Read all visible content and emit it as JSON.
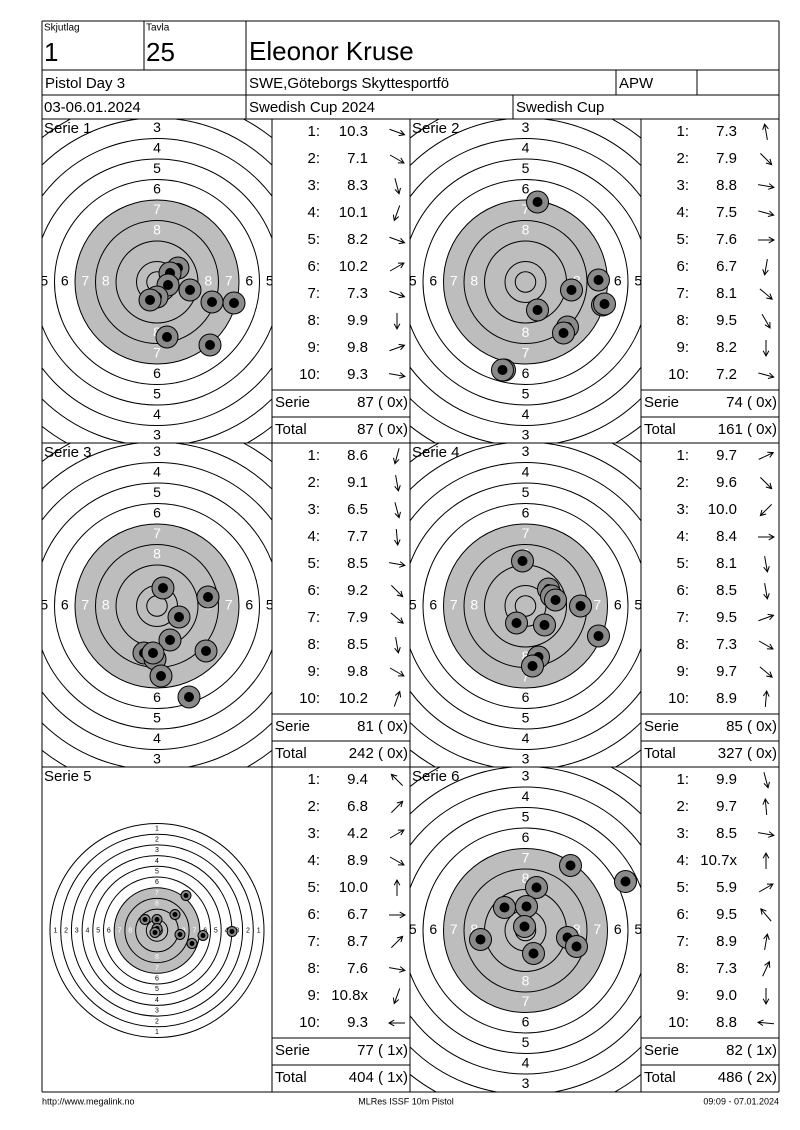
{
  "header": {
    "squad_label": "Skjutlag",
    "squad": "1",
    "target_label": "Tavla",
    "target": "25",
    "name": "Eleonor Kruse",
    "event": "Pistol Day 3",
    "club": "SWE,Göteborgs Skyttesportfö",
    "class": "APW",
    "dates": "03-06.01.2024",
    "competition": "Swedish Cup 2024",
    "series_name": "Swedish Cup"
  },
  "ring_numbers": [
    "1",
    "2",
    "3",
    "4",
    "5",
    "6",
    "7",
    "8"
  ],
  "series": [
    {
      "title": "Serie 1",
      "shots": [
        {
          "n": "1:",
          "value": "10.3"
        },
        {
          "n": "2:",
          "value": "7.1"
        },
        {
          "n": "3:",
          "value": "8.3"
        },
        {
          "n": "4:",
          "value": "10.1"
        },
        {
          "n": "5:",
          "value": "8.2"
        },
        {
          "n": "6:",
          "value": "10.2"
        },
        {
          "n": "7:",
          "value": "7.3"
        },
        {
          "n": "8:",
          "value": "9.9"
        },
        {
          "n": "9:",
          "value": "9.8"
        },
        {
          "n": "10:",
          "value": "9.3"
        }
      ],
      "serie_label": "Serie",
      "serie_score": "87 ( 0x)",
      "total_label": "Total",
      "total_score": "87 ( 0x)"
    },
    {
      "title": "Serie 2",
      "shots": [
        {
          "n": "1:",
          "value": "7.3"
        },
        {
          "n": "2:",
          "value": "7.9"
        },
        {
          "n": "3:",
          "value": "8.8"
        },
        {
          "n": "4:",
          "value": "7.5"
        },
        {
          "n": "5:",
          "value": "7.6"
        },
        {
          "n": "6:",
          "value": "6.7"
        },
        {
          "n": "7:",
          "value": "8.1"
        },
        {
          "n": "8:",
          "value": "9.5"
        },
        {
          "n": "9:",
          "value": "8.2"
        },
        {
          "n": "10:",
          "value": "7.2"
        }
      ],
      "serie_label": "Serie",
      "serie_score": "74 ( 0x)",
      "total_label": "Total",
      "total_score": "161 ( 0x)"
    },
    {
      "title": "Serie 3",
      "shots": [
        {
          "n": "1:",
          "value": "8.6"
        },
        {
          "n": "2:",
          "value": "9.1"
        },
        {
          "n": "3:",
          "value": "6.5"
        },
        {
          "n": "4:",
          "value": "7.7"
        },
        {
          "n": "5:",
          "value": "8.5"
        },
        {
          "n": "6:",
          "value": "9.2"
        },
        {
          "n": "7:",
          "value": "7.9"
        },
        {
          "n": "8:",
          "value": "8.5"
        },
        {
          "n": "9:",
          "value": "9.8"
        },
        {
          "n": "10:",
          "value": "10.2"
        }
      ],
      "serie_label": "Serie",
      "serie_score": "81 ( 0x)",
      "total_label": "Total",
      "total_score": "242 ( 0x)"
    },
    {
      "title": "Serie 4",
      "shots": [
        {
          "n": "1:",
          "value": "9.7"
        },
        {
          "n": "2:",
          "value": "9.6"
        },
        {
          "n": "3:",
          "value": "10.0"
        },
        {
          "n": "4:",
          "value": "8.4"
        },
        {
          "n": "5:",
          "value": "8.1"
        },
        {
          "n": "6:",
          "value": "8.5"
        },
        {
          "n": "7:",
          "value": "9.5"
        },
        {
          "n": "8:",
          "value": "7.3"
        },
        {
          "n": "9:",
          "value": "9.7"
        },
        {
          "n": "10:",
          "value": "8.9"
        }
      ],
      "serie_label": "Serie",
      "serie_score": "85 ( 0x)",
      "total_label": "Total",
      "total_score": "327 ( 0x)"
    },
    {
      "title": "Serie 5",
      "shots": [
        {
          "n": "1:",
          "value": "9.4"
        },
        {
          "n": "2:",
          "value": "6.8"
        },
        {
          "n": "3:",
          "value": "4.2"
        },
        {
          "n": "4:",
          "value": "8.9"
        },
        {
          "n": "5:",
          "value": "10.0"
        },
        {
          "n": "6:",
          "value": "6.7"
        },
        {
          "n": "7:",
          "value": "8.7"
        },
        {
          "n": "8:",
          "value": "7.6"
        },
        {
          "n": "9:",
          "value": "10.8x"
        },
        {
          "n": "10:",
          "value": "9.3"
        }
      ],
      "serie_label": "Serie",
      "serie_score": "77 ( 1x)",
      "total_label": "Total",
      "total_score": "404 ( 1x)"
    },
    {
      "title": "Serie 6",
      "shots": [
        {
          "n": "1:",
          "value": "9.9"
        },
        {
          "n": "2:",
          "value": "9.7"
        },
        {
          "n": "3:",
          "value": "8.5"
        },
        {
          "n": "4:",
          "value": "10.7x"
        },
        {
          "n": "5:",
          "value": "5.9"
        },
        {
          "n": "6:",
          "value": "9.5"
        },
        {
          "n": "7:",
          "value": "8.9"
        },
        {
          "n": "8:",
          "value": "7.3"
        },
        {
          "n": "9:",
          "value": "9.0"
        },
        {
          "n": "10:",
          "value": "8.8"
        }
      ],
      "serie_label": "Serie",
      "serie_score": "82 ( 1x)",
      "total_label": "Total",
      "total_score": "486 ( 2x)"
    }
  ],
  "footer": {
    "url": "http://www.megalink.no",
    "program": "MLRes ISSF 10m Pistol",
    "timestamp": "09:09 - 07.01.2024"
  }
}
